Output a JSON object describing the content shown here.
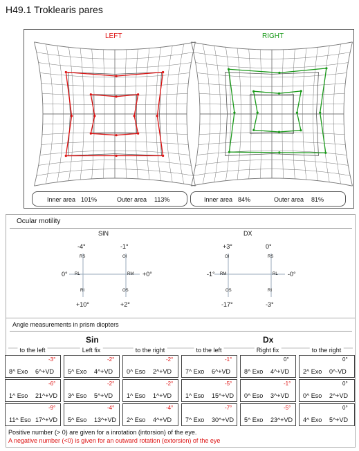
{
  "title": "H49.1 Troklearis pares",
  "hess": {
    "left": {
      "label": "LEFT",
      "inner_label": "Inner area",
      "inner": "101%",
      "outer_label": "Outer area",
      "outer": "113%"
    },
    "right": {
      "label": "RIGHT",
      "inner_label": "Inner area",
      "inner": "84%",
      "outer_label": "Outer area",
      "outer": "81%"
    }
  },
  "motility": {
    "title": "Ocular motility",
    "sin": {
      "label": "SIN",
      "top_left": {
        "value": "-4°",
        "muscle": "RS"
      },
      "top_right": {
        "value": "-1°",
        "muscle": "OI"
      },
      "left": {
        "value": "0°",
        "muscle": "RL"
      },
      "right": {
        "value": "+0°",
        "muscle": "RM"
      },
      "bottom_left": {
        "value": "+10°",
        "muscle": "RI"
      },
      "bottom_right": {
        "value": "+2°",
        "muscle": "OS"
      }
    },
    "dx": {
      "label": "DX",
      "top_left": {
        "value": "+3°",
        "muscle": "OI"
      },
      "top_right": {
        "value": "0°",
        "muscle": "RS"
      },
      "left": {
        "value": "-1°",
        "muscle": "RM"
      },
      "right": {
        "value": "-0°",
        "muscle": "RL"
      },
      "bottom_left": {
        "value": "-17°",
        "muscle": "OS"
      },
      "bottom_right": {
        "value": "-3°",
        "muscle": "RI"
      }
    }
  },
  "prism": {
    "title": "Angle measurements in prism diopters",
    "sin": "Sin",
    "dx": "Dx",
    "columns": [
      "to the left",
      "Left fix",
      "to the right",
      "to the left",
      "Right fix",
      "to the right"
    ],
    "rows": [
      [
        [
          "-3°",
          "8^ Exo",
          "6^+VD"
        ],
        [
          "-2°",
          "5^ Exo",
          "4^+VD"
        ],
        [
          "-2°",
          "0^ Eso",
          "2^+VD"
        ],
        [
          "-1°",
          "7^ Exo",
          "6^+VD"
        ],
        [
          "0°",
          "8^ Exo",
          "4^+VD"
        ],
        [
          "0°",
          "2^ Exo",
          "0^-VD"
        ]
      ],
      [
        [
          "-6°",
          "1^ Eso",
          "21^+VD"
        ],
        [
          "-2°",
          "3^ Eso",
          "5^+VD"
        ],
        [
          "-2°",
          "1^ Eso",
          "1^+VD"
        ],
        [
          "-5°",
          "1^ Eso",
          "15^+VD"
        ],
        [
          "-1°",
          "0^ Eso",
          "3^+VD"
        ],
        [
          "0°",
          "0^ Eso",
          "2^+VD"
        ]
      ],
      [
        [
          "-9°",
          "11^ Eso",
          "17^+VD"
        ],
        [
          "-4°",
          "5^ Eso",
          "13^+VD"
        ],
        [
          "-4°",
          "2^ Eso",
          "4^+VD"
        ],
        [
          "-7°",
          "7^ Exo",
          "30^+VD"
        ],
        [
          "-5°",
          "5^ Exo",
          "23^+VD"
        ],
        [
          "0°",
          "4^ Exo",
          "5^+VD"
        ]
      ]
    ]
  },
  "footer": {
    "positive": "Positive number (> 0) are given for a inrotation (intorsion) of the eye.",
    "negative": "A negative number (<0) is given for an outward rotation (extorsion) of the eye"
  }
}
